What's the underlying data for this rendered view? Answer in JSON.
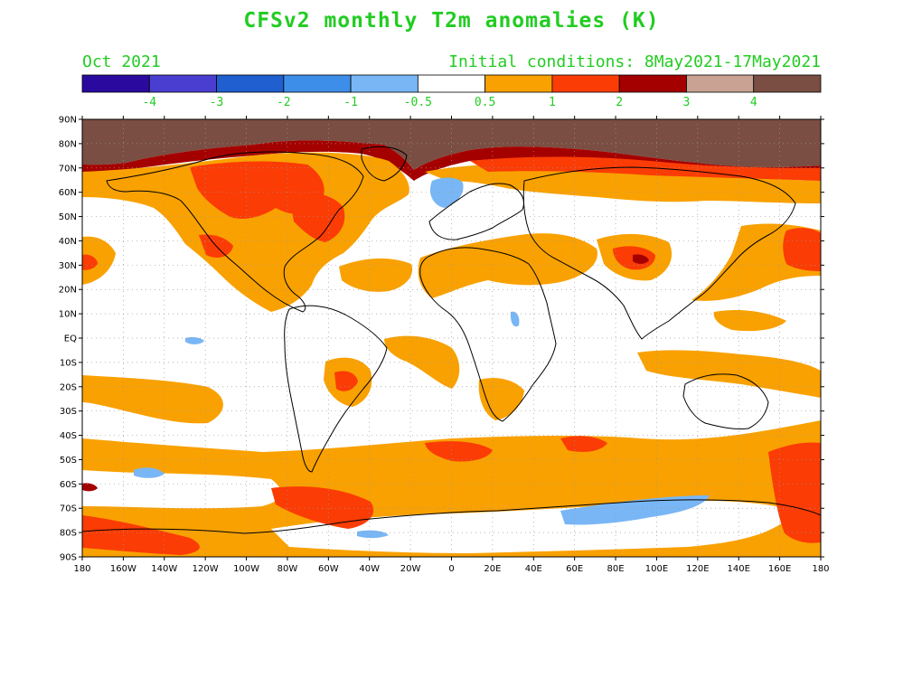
{
  "title": "CFSv2 monthly T2m anomalies (K)",
  "forecast_month": "Oct 2021",
  "initial_conditions": "Initial conditions: 8May2021-17May2021",
  "colorbar": {
    "colors": [
      "#2a0a9e",
      "#4a3ed0",
      "#1f5fcf",
      "#3d8ee8",
      "#79b6f5",
      "#ffffff",
      "#f9a100",
      "#fb3c05",
      "#a50000",
      "#c9a294",
      "#7a4e42"
    ],
    "labels": [
      "-4",
      "-3",
      "-2",
      "-1",
      "-0.5",
      "0.5",
      "1",
      "2",
      "3",
      "4"
    ]
  },
  "map": {
    "lat_labels": [
      "90N",
      "80N",
      "70N",
      "60N",
      "50N",
      "40N",
      "30N",
      "20N",
      "10N",
      "EQ",
      "10S",
      "20S",
      "30S",
      "40S",
      "50S",
      "60S",
      "70S",
      "80S",
      "90S"
    ],
    "lon_labels": [
      "180",
      "160W",
      "140W",
      "120W",
      "100W",
      "80W",
      "60W",
      "40W",
      "20W",
      "0",
      "20E",
      "40E",
      "60E",
      "80E",
      "100E",
      "120E",
      "140E",
      "160E",
      "180"
    ]
  }
}
